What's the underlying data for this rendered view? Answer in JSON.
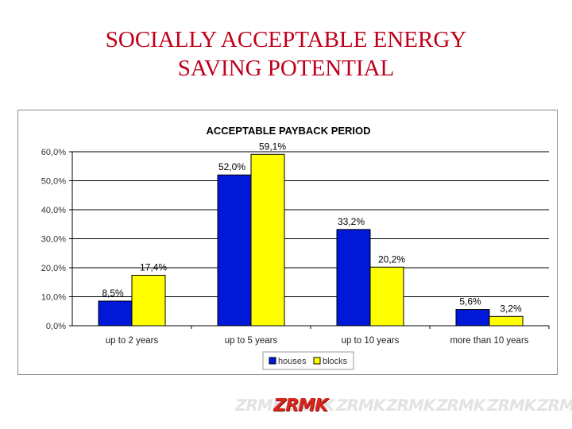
{
  "slide": {
    "title_line1": "SOCIALLY ACCEPTABLE ENERGY",
    "title_line2": "SAVING POTENTIAL"
  },
  "colors": {
    "title": "#c0001a",
    "houses": "#0018d8",
    "blocks": "#ffff00"
  },
  "logo": {
    "text": "ZRMK"
  },
  "chart_data": {
    "type": "bar",
    "title": "ACCEPTABLE PAYBACK PERIOD",
    "categories": [
      "up to 2 years",
      "up to 5 years",
      "up to 10 years",
      "more than 10 years"
    ],
    "series": [
      {
        "name": "houses",
        "values": [
          8.5,
          52.0,
          33.2,
          5.6
        ],
        "labels": [
          "8,5%",
          "52,0%",
          "33,2%",
          "5,6%"
        ]
      },
      {
        "name": "blocks",
        "values": [
          17.4,
          59.1,
          20.2,
          3.2
        ],
        "labels": [
          "17,4%",
          "59,1%",
          "20,2%",
          "3,2%"
        ]
      }
    ],
    "yticks": [
      "0,0%",
      "10,0%",
      "20,0%",
      "30,0%",
      "40,0%",
      "50,0%",
      "60,0%"
    ],
    "ylim": [
      0,
      60
    ],
    "grid": true,
    "legend": "bottom"
  }
}
